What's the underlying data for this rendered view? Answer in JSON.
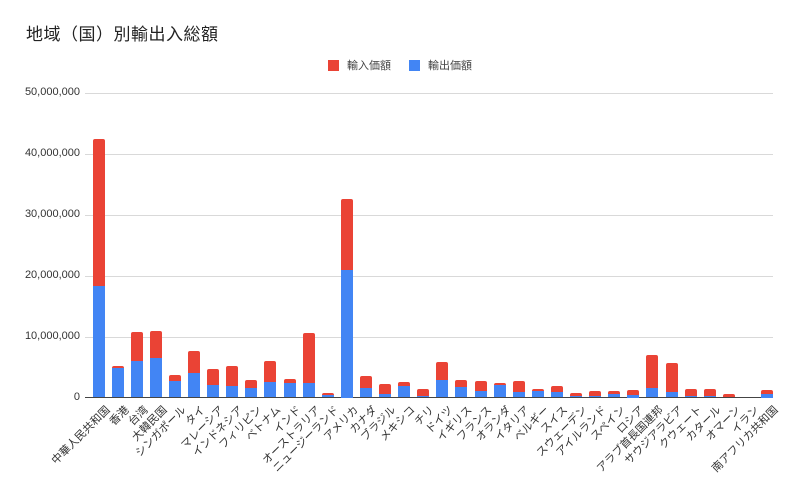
{
  "chart_data": {
    "type": "bar",
    "stacked": true,
    "title": "地域（国）別輸出入総額",
    "xlabel": "",
    "ylabel": "",
    "ylim": [
      0,
      50000000
    ],
    "yticks": [
      "0",
      "10,000,000",
      "20,000,000",
      "30,000,000",
      "40,000,000",
      "50,000,000"
    ],
    "grid": true,
    "legend_position": "top",
    "categories": [
      "中華人民共和国",
      "香港",
      "台湾",
      "大韓民国",
      "シンガポール",
      "タイ",
      "マレーシア",
      "インドネシア",
      "フィリピン",
      "ベトナム",
      "インド",
      "オーストラリア",
      "ニュージーランド",
      "アメリカ",
      "カナダ",
      "ブラジル",
      "メキシコ",
      "チリ",
      "ドイツ",
      "イギリス",
      "フランス",
      "オランダ",
      "イタリア",
      "ベルギー",
      "スイス",
      "スウェーデン",
      "アイルランド",
      "スペイン",
      "ロシア",
      "アラブ首長国連邦",
      "サウジアラビア",
      "クウェート",
      "カタール",
      "オマーン",
      "イラン",
      "南アフリカ共和国"
    ],
    "series": [
      {
        "name": "輸出価額",
        "color": "#4285f4",
        "values": [
          18300000,
          4800000,
          6000000,
          6500000,
          2700000,
          4000000,
          2000000,
          1900000,
          1500000,
          2500000,
          2350000,
          2350000,
          450000,
          20850000,
          1600000,
          650000,
          1900000,
          300000,
          2800000,
          1800000,
          1050000,
          2000000,
          950000,
          1000000,
          900000,
          300000,
          300000,
          600000,
          400000,
          1600000,
          900000,
          200000,
          200000,
          100000,
          0,
          500000
        ]
      },
      {
        "name": "輸入価額",
        "color": "#ea4335",
        "values": [
          24100000,
          300000,
          4700000,
          4400000,
          950000,
          3600000,
          2700000,
          3300000,
          1400000,
          3500000,
          700000,
          8250000,
          350000,
          11650000,
          1900000,
          1550000,
          700000,
          1100000,
          3000000,
          1000000,
          1600000,
          350000,
          1700000,
          450000,
          1000000,
          400000,
          800000,
          500000,
          850000,
          5300000,
          4800000,
          1250000,
          1200000,
          500000,
          0,
          750000
        ]
      }
    ],
    "totals": [
      42400000,
      5100000,
      10700000,
      10900000,
      3650000,
      7600000,
      4700000,
      5200000,
      2900000,
      6000000,
      3050000,
      10600000,
      800000,
      32500000,
      3500000,
      2200000,
      2600000,
      1400000,
      5800000,
      2800000,
      2650000,
      2350000,
      2650000,
      1450000,
      1900000,
      700000,
      1100000,
      1100000,
      1250000,
      6900000,
      5700000,
      1450000,
      1400000,
      600000,
      0,
      1250000
    ]
  },
  "legend": [
    {
      "label": "輸入価額",
      "color": "#ea4335"
    },
    {
      "label": "輸出価額",
      "color": "#4285f4"
    }
  ]
}
